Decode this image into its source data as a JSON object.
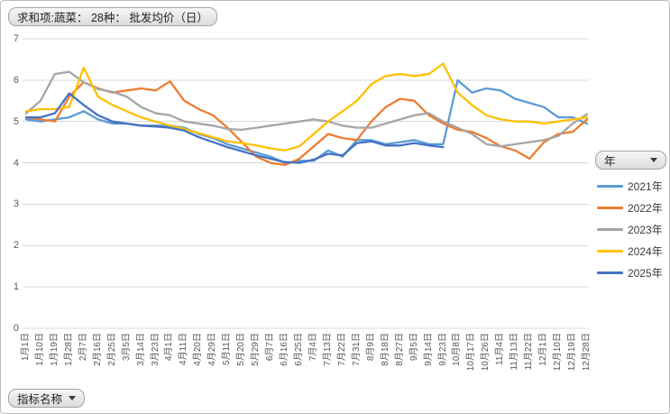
{
  "pivot_buttons": {
    "value_field": "求和项:蔬菜： 28种： 批发均价（日）",
    "legend_field": "年",
    "axis_field": "指标名称"
  },
  "colors": {
    "gridline": "#d9d9d9",
    "axis_text": "#595959",
    "series_2021": "#5B9BD5",
    "series_2022": "#ED7D31",
    "series_2023": "#A5A5A5",
    "series_2024": "#FFC000",
    "series_2025": "#4472C4"
  },
  "chart_data": {
    "type": "line",
    "title": "求和项:蔬菜： 28种： 批发均价（日）",
    "xlabel": "",
    "ylabel": "",
    "ylim": [
      0,
      7
    ],
    "y_ticks": [
      0,
      1,
      2,
      3,
      4,
      5,
      6,
      7
    ],
    "grid": "horizontal",
    "legend_position": "right",
    "x_labels_rotated_degrees": 90,
    "categories": [
      "1月1日",
      "1月10日",
      "1月19日",
      "1月28日",
      "2月7日",
      "2月16日",
      "2月25日",
      "3月5日",
      "3月14日",
      "3月23日",
      "4月1日",
      "4月11日",
      "4月20日",
      "4月29日",
      "5月11日",
      "5月20日",
      "5月29日",
      "6月7日",
      "6月16日",
      "6月25日",
      "7月4日",
      "7月13日",
      "7月22日",
      "7月31日",
      "8月9日",
      "8月18日",
      "8月27日",
      "9月5日",
      "9月14日",
      "9月23日",
      "10月8日",
      "10月17日",
      "10月26日",
      "11月4日",
      "11月13日",
      "11月22日",
      "12月1日",
      "12月10日",
      "12月19日",
      "12月28日"
    ],
    "series": [
      {
        "name": "2021年",
        "color": "#5B9BD5",
        "values": [
          5.05,
          5.0,
          5.05,
          5.1,
          5.25,
          5.05,
          4.95,
          4.95,
          4.9,
          4.9,
          4.9,
          4.85,
          4.7,
          4.6,
          4.45,
          4.35,
          4.25,
          4.15,
          4.0,
          4.05,
          4.05,
          4.3,
          4.15,
          4.55,
          4.55,
          4.45,
          4.5,
          4.55,
          4.45,
          4.45,
          6.0,
          5.7,
          5.8,
          5.75,
          5.55,
          5.45,
          5.35,
          5.1,
          5.1,
          4.95
        ]
      },
      {
        "name": "2022年",
        "color": "#ED7D31",
        "values": [
          5.1,
          5.05,
          5.0,
          5.6,
          5.95,
          5.8,
          5.7,
          5.75,
          5.8,
          5.75,
          5.97,
          5.5,
          5.3,
          5.15,
          4.85,
          4.5,
          4.15,
          4.0,
          3.95,
          4.1,
          4.4,
          4.7,
          4.6,
          4.55,
          5.0,
          5.35,
          5.55,
          5.5,
          5.15,
          4.95,
          4.8,
          4.75,
          4.6,
          4.4,
          4.3,
          4.1,
          4.5,
          4.7,
          4.75,
          5.05
        ]
      },
      {
        "name": "2023年",
        "color": "#A5A5A5",
        "values": [
          5.2,
          5.5,
          6.15,
          6.2,
          5.95,
          5.78,
          5.72,
          5.6,
          5.35,
          5.2,
          5.15,
          5.0,
          4.95,
          4.9,
          4.82,
          4.8,
          4.85,
          4.9,
          4.95,
          5.0,
          5.05,
          5.0,
          4.9,
          4.85,
          4.85,
          4.95,
          5.05,
          5.15,
          5.2,
          5.0,
          4.85,
          4.7,
          4.45,
          4.4,
          4.45,
          4.5,
          4.55,
          4.65,
          4.95,
          5.18
        ]
      },
      {
        "name": "2024年",
        "color": "#FFC000",
        "values": [
          5.25,
          5.3,
          5.3,
          5.35,
          6.3,
          5.6,
          5.4,
          5.25,
          5.1,
          5.0,
          4.9,
          4.82,
          4.72,
          4.62,
          4.52,
          4.48,
          4.42,
          4.35,
          4.3,
          4.4,
          4.7,
          5.0,
          5.25,
          5.5,
          5.9,
          6.1,
          6.15,
          6.1,
          6.15,
          6.4,
          5.7,
          5.4,
          5.15,
          5.05,
          5.0,
          5.0,
          4.95,
          5.0,
          5.05,
          5.1
        ]
      },
      {
        "name": "2025年",
        "color": "#4472C4",
        "values": [
          5.1,
          5.1,
          5.2,
          5.68,
          5.4,
          5.15,
          5.0,
          4.95,
          4.9,
          4.88,
          4.85,
          4.78,
          4.62,
          4.5,
          4.38,
          4.28,
          4.18,
          4.1,
          4.02,
          4.0,
          4.08,
          4.22,
          4.18,
          4.48,
          4.52,
          4.42,
          4.42,
          4.48,
          4.42,
          4.38,
          null,
          null,
          null,
          null,
          null,
          null,
          null,
          null,
          null,
          null
        ]
      }
    ]
  }
}
